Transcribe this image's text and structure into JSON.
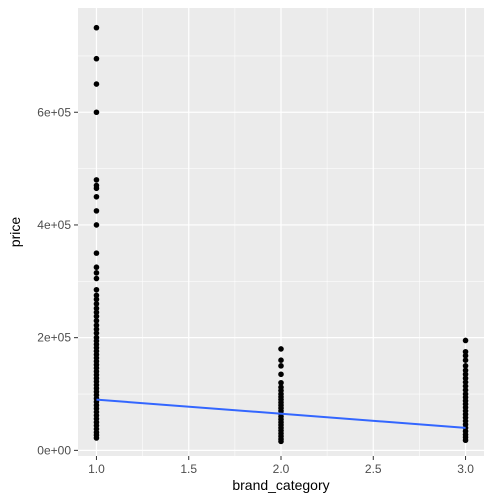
{
  "chart_data": {
    "type": "scatter",
    "title": "",
    "xlabel": "brand_category",
    "ylabel": "price",
    "xlim": [
      0.9,
      3.1
    ],
    "ylim": [
      -10000,
      785000
    ],
    "x_ticks": [
      1.0,
      1.5,
      2.0,
      2.5,
      3.0
    ],
    "x_tick_labels": [
      "1.0",
      "1.5",
      "2.0",
      "2.5",
      "3.0"
    ],
    "y_ticks": [
      0,
      200000,
      400000,
      600000
    ],
    "y_tick_labels": [
      "0e+00",
      "2e+05",
      "4e+05",
      "6e+05"
    ],
    "grid": true,
    "colors": {
      "panel_background": "#ebebeb",
      "grid_major": "#ffffff",
      "points": "#000000",
      "trend_line": "#3366ff"
    },
    "series": [
      {
        "type": "scatter",
        "points": [
          [
            1,
            750000
          ],
          [
            1,
            695000
          ],
          [
            1,
            650000
          ],
          [
            1,
            600000
          ],
          [
            1,
            480000
          ],
          [
            1,
            470000
          ],
          [
            1,
            465000
          ],
          [
            1,
            450000
          ],
          [
            1,
            425000
          ],
          [
            1,
            400000
          ],
          [
            1,
            350000
          ],
          [
            1,
            325000
          ],
          [
            1,
            315000
          ],
          [
            1,
            305000
          ],
          [
            1,
            285000
          ],
          [
            1,
            275000
          ],
          [
            1,
            268000
          ],
          [
            1,
            260000
          ],
          [
            1,
            252000
          ],
          [
            1,
            245000
          ],
          [
            1,
            238000
          ],
          [
            1,
            230000
          ],
          [
            1,
            222000
          ],
          [
            1,
            215000
          ],
          [
            1,
            208000
          ],
          [
            1,
            200000
          ],
          [
            1,
            194000
          ],
          [
            1,
            188000
          ],
          [
            1,
            182000
          ],
          [
            1,
            176000
          ],
          [
            1,
            170000
          ],
          [
            1,
            164000
          ],
          [
            1,
            158000
          ],
          [
            1,
            152000
          ],
          [
            1,
            146000
          ],
          [
            1,
            140000
          ],
          [
            1,
            134000
          ],
          [
            1,
            128000
          ],
          [
            1,
            122000
          ],
          [
            1,
            116000
          ],
          [
            1,
            110000
          ],
          [
            1,
            104000
          ],
          [
            1,
            98000
          ],
          [
            1,
            92000
          ],
          [
            1,
            86000
          ],
          [
            1,
            80000
          ],
          [
            1,
            74000
          ],
          [
            1,
            68000
          ],
          [
            1,
            62000
          ],
          [
            1,
            56000
          ],
          [
            1,
            50000
          ],
          [
            1,
            44000
          ],
          [
            1,
            38000
          ],
          [
            1,
            32000
          ],
          [
            1,
            27000
          ],
          [
            1,
            22000
          ],
          [
            2,
            180000
          ],
          [
            2,
            160000
          ],
          [
            2,
            150000
          ],
          [
            2,
            135000
          ],
          [
            2,
            120000
          ],
          [
            2,
            112000
          ],
          [
            2,
            106000
          ],
          [
            2,
            100000
          ],
          [
            2,
            95000
          ],
          [
            2,
            90000
          ],
          [
            2,
            85000
          ],
          [
            2,
            80000
          ],
          [
            2,
            75000
          ],
          [
            2,
            70000
          ],
          [
            2,
            65000
          ],
          [
            2,
            60000
          ],
          [
            2,
            55000
          ],
          [
            2,
            50000
          ],
          [
            2,
            45000
          ],
          [
            2,
            40000
          ],
          [
            2,
            35000
          ],
          [
            2,
            30000
          ],
          [
            2,
            25000
          ],
          [
            2,
            20000
          ],
          [
            2,
            16000
          ],
          [
            3,
            195000
          ],
          [
            3,
            175000
          ],
          [
            3,
            168000
          ],
          [
            3,
            160000
          ],
          [
            3,
            150000
          ],
          [
            3,
            142000
          ],
          [
            3,
            135000
          ],
          [
            3,
            128000
          ],
          [
            3,
            121000
          ],
          [
            3,
            114000
          ],
          [
            3,
            107000
          ],
          [
            3,
            100000
          ],
          [
            3,
            94000
          ],
          [
            3,
            88000
          ],
          [
            3,
            82000
          ],
          [
            3,
            76000
          ],
          [
            3,
            70000
          ],
          [
            3,
            64000
          ],
          [
            3,
            58000
          ],
          [
            3,
            52000
          ],
          [
            3,
            46000
          ],
          [
            3,
            40000
          ],
          [
            3,
            34000
          ],
          [
            3,
            28000
          ],
          [
            3,
            23000
          ],
          [
            3,
            18000
          ]
        ]
      },
      {
        "type": "line",
        "points": [
          [
            1,
            90000
          ],
          [
            3,
            40000
          ]
        ]
      }
    ]
  }
}
